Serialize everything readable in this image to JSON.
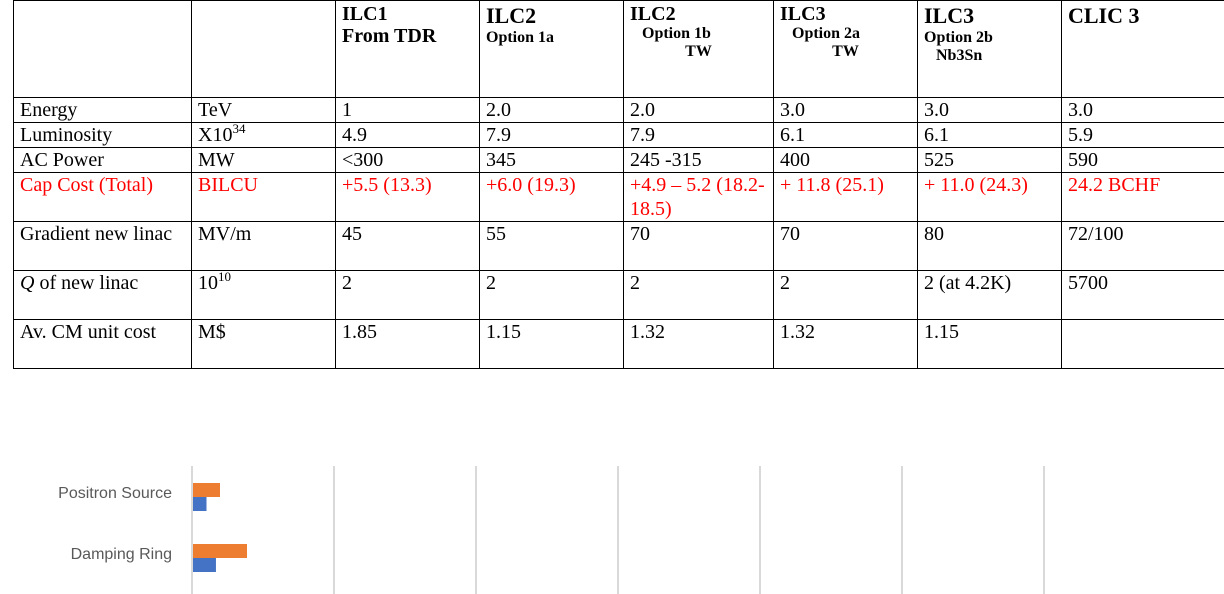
{
  "table": {
    "headers": [
      {
        "label": "",
        "lines": []
      },
      {
        "label": "",
        "lines": []
      },
      {
        "lines": [
          "ILC1",
          "From TDR"
        ]
      },
      {
        "lines": [
          "ILC2",
          "Option 1a"
        ]
      },
      {
        "lines": [
          "ILC2",
          "Option 1b",
          "TW"
        ]
      },
      {
        "lines": [
          "ILC3",
          "Option 2a",
          "TW"
        ]
      },
      {
        "lines": [
          "ILC3",
          "Option 2b",
          "Nb3Sn"
        ]
      },
      {
        "lines": [
          "CLIC 3"
        ]
      }
    ],
    "rows": [
      {
        "param": "Energy",
        "unit": "TeV",
        "values": [
          "1",
          "2.0",
          "2.0",
          "3.0",
          "3.0",
          "3.0"
        ]
      },
      {
        "param": "Luminosity",
        "unit_base": "X10",
        "unit_sup": "34",
        "values": [
          "4.9",
          "7.9",
          "7.9",
          "6.1",
          "6.1",
          "5.9"
        ]
      },
      {
        "param": "AC Power",
        "unit": "MW",
        "values": [
          "<300",
          "345",
          "245 -315",
          "400",
          "525",
          "590"
        ]
      },
      {
        "param": "Cap Cost (Total)",
        "unit": "BILCU",
        "values": [
          "+5.5 (13.3)",
          "+6.0 (19.3)",
          "+4.9 – 5.2 (18.2-18.5)",
          "+ 11.8 (25.1)",
          "+ 11.0 (24.3)",
          "24.2 BCHF"
        ],
        "highlight_color": "#ff0000"
      },
      {
        "param": "Gradient new linac",
        "unit": "MV/m",
        "values": [
          "45",
          "55",
          "70",
          "70",
          "80",
          "72/100"
        ]
      },
      {
        "param_italic": "Q",
        "param_rest": " of new linac",
        "unit_base": "10",
        "unit_sup": "10",
        "values": [
          "2",
          "2",
          "2",
          "2",
          "2 (at 4.2K)",
          "5700"
        ]
      },
      {
        "param": "Av. CM unit cost",
        "unit": "M$",
        "values": [
          "1.85",
          "1.15",
          "1.32",
          "1.32",
          "1.15",
          ""
        ]
      }
    ]
  },
  "chart_data": {
    "type": "bar",
    "orientation": "horizontal",
    "categories": [
      "Positron Source",
      "Damping Ring"
    ],
    "series": [
      {
        "values": [
          1.0,
          2.0
        ],
        "color": "#ED7D31"
      },
      {
        "values": [
          0.5,
          0.85
        ],
        "color": "#4472C4"
      }
    ],
    "grid": true,
    "label_color": "#595959"
  }
}
